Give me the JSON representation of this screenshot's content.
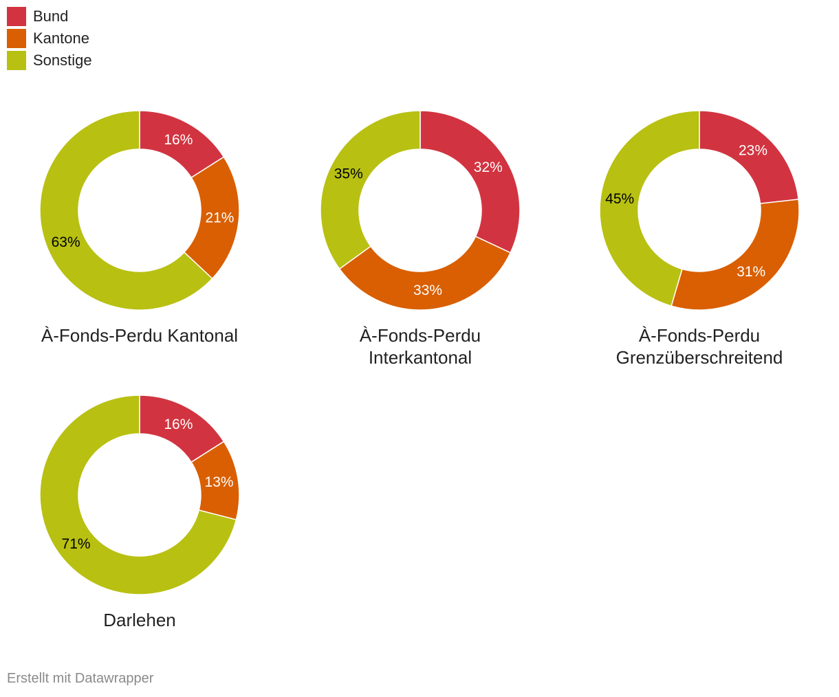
{
  "legend": {
    "items": [
      {
        "label": "Bund",
        "color": "#d13440"
      },
      {
        "label": "Kantone",
        "color": "#d95f02"
      },
      {
        "label": "Sonstige",
        "color": "#b8c012"
      }
    ]
  },
  "chart_data": [
    {
      "type": "pie",
      "title": "À-Fonds-Perdu Kantonal",
      "categories": [
        "Bund",
        "Kantone",
        "Sonstige"
      ],
      "values": [
        16,
        21,
        63
      ],
      "labels": [
        "16%",
        "21%",
        "63%"
      ]
    },
    {
      "type": "pie",
      "title": "À-Fonds-Perdu Interkantonal",
      "categories": [
        "Bund",
        "Kantone",
        "Sonstige"
      ],
      "values": [
        32,
        33,
        35
      ],
      "labels": [
        "32%",
        "33%",
        "35%"
      ]
    },
    {
      "type": "pie",
      "title": "À-Fonds-Perdu Grenzüberschreitend",
      "categories": [
        "Bund",
        "Kantone",
        "Sonstige"
      ],
      "values": [
        23,
        31,
        45
      ],
      "labels": [
        "23%",
        "31%",
        "45%"
      ]
    },
    {
      "type": "pie",
      "title": "Darlehen",
      "categories": [
        "Bund",
        "Kantone",
        "Sonstige"
      ],
      "values": [
        16,
        13,
        71
      ],
      "labels": [
        "16%",
        "13%",
        "71%"
      ]
    }
  ],
  "label_colors": [
    "#ffffff",
    "#ffffff",
    "#000000"
  ],
  "footer": {
    "credit": "Erstellt mit Datawrapper"
  }
}
